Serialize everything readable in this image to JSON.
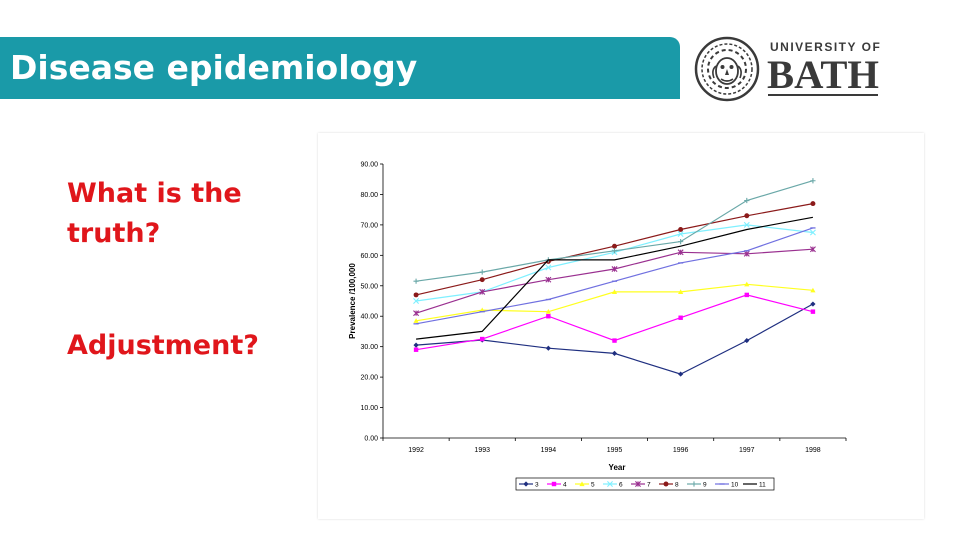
{
  "slide": {
    "title": "Disease epidemiology",
    "bullets": [
      "What is the truth?",
      "Adjustment?"
    ]
  },
  "logo": {
    "line1": "UNIVERSITY OF",
    "line2": "BATH"
  },
  "colors": {
    "title_bar": "#1a9aa8",
    "bullet_text": "#e0161b",
    "logo": "#3a3a3a"
  },
  "chart_data": {
    "type": "line",
    "title": "",
    "xlabel": "Year",
    "ylabel": "Prevalence /100,000",
    "categories": [
      "1992",
      "1993",
      "1994",
      "1995",
      "1996",
      "1997",
      "1998"
    ],
    "ylim": [
      0,
      90
    ],
    "yticks": [
      "0.00",
      "10.00",
      "20.00",
      "30.00",
      "40.00",
      "50.00",
      "60.00",
      "70.00",
      "80.00",
      "90.00"
    ],
    "grid": false,
    "legend_position": "bottom",
    "series": [
      {
        "name": "3",
        "color": "#1f2f80",
        "marker": "diamond",
        "values": [
          30.5,
          32.2,
          29.5,
          27.8,
          21.0,
          32.0,
          44.0
        ]
      },
      {
        "name": "4",
        "color": "#ff00ff",
        "marker": "square",
        "values": [
          29.0,
          32.5,
          40.0,
          32.0,
          39.5,
          47.0,
          41.5
        ]
      },
      {
        "name": "5",
        "color": "#ffff20",
        "marker": "triangle",
        "values": [
          38.5,
          42.0,
          41.5,
          48.0,
          48.0,
          50.5,
          48.5
        ]
      },
      {
        "name": "6",
        "color": "#7ff0ff",
        "marker": "x",
        "values": [
          45.0,
          48.0,
          56.0,
          61.0,
          67.0,
          70.0,
          67.5
        ]
      },
      {
        "name": "7",
        "color": "#9a3090",
        "marker": "star",
        "values": [
          41.0,
          48.0,
          52.0,
          55.5,
          61.0,
          60.5,
          62.0
        ]
      },
      {
        "name": "8",
        "color": "#8b1a1a",
        "marker": "circle",
        "values": [
          47.0,
          52.0,
          58.0,
          63.0,
          68.5,
          73.0,
          77.0
        ]
      },
      {
        "name": "9",
        "color": "#6aa8a8",
        "marker": "plus",
        "values": [
          51.5,
          54.5,
          58.5,
          61.5,
          64.5,
          78.0,
          84.5
        ]
      },
      {
        "name": "10",
        "color": "#7070e0",
        "marker": "dash",
        "values": [
          37.5,
          41.5,
          45.5,
          51.5,
          57.5,
          61.5,
          69.0
        ]
      },
      {
        "name": "11",
        "color": "#000000",
        "marker": "none",
        "values": [
          32.5,
          35.0,
          58.5,
          58.5,
          63.0,
          68.5,
          72.5
        ]
      }
    ]
  }
}
